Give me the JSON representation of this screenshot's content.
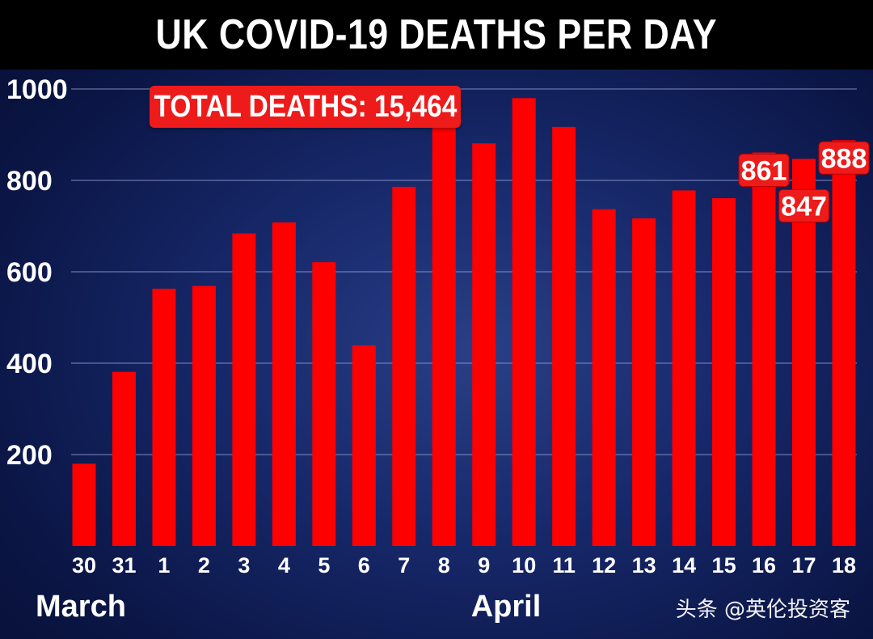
{
  "header": {
    "title": "UK COVID-19 DEATHS PER DAY"
  },
  "annotation": {
    "total_label": "TOTAL DEATHS: 15,464"
  },
  "watermark": {
    "text": "头条 @英伦投资客"
  },
  "chart_data": {
    "type": "bar",
    "title": "UK COVID-19 DEATHS PER DAY",
    "xlabel": "",
    "ylabel": "",
    "categories": [
      "30",
      "31",
      "1",
      "2",
      "3",
      "4",
      "5",
      "6",
      "7",
      "8",
      "9",
      "10",
      "11",
      "12",
      "13",
      "14",
      "15",
      "16",
      "17",
      "18"
    ],
    "month_labels": [
      {
        "label": "March",
        "at_category": "30"
      },
      {
        "label": "April",
        "at_category": "9"
      }
    ],
    "values": [
      180,
      381,
      563,
      569,
      684,
      708,
      621,
      439,
      786,
      938,
      881,
      980,
      917,
      737,
      717,
      778,
      761,
      861,
      847,
      888
    ],
    "data_labels": [
      {
        "category": "16",
        "text": "861"
      },
      {
        "category": "17",
        "text": "847"
      },
      {
        "category": "18",
        "text": "888"
      }
    ],
    "yticks": [
      200,
      400,
      600,
      800,
      1000
    ],
    "ylim": [
      0,
      1000
    ],
    "grid": true,
    "legend": "none",
    "colors": {
      "bar": "#ff0000",
      "label_box": "#ee1b1b",
      "grid": "#8f9ad0"
    }
  }
}
